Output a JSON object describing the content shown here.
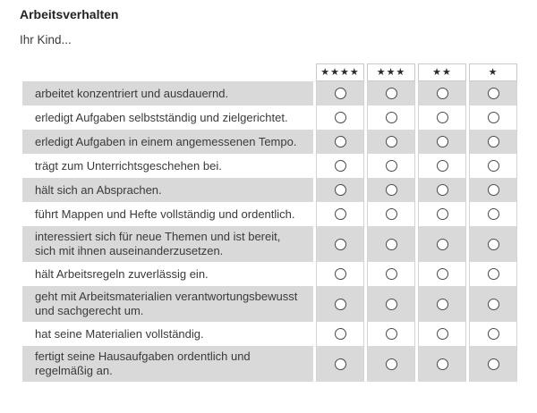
{
  "page": {
    "title": "Arbeitsverhalten",
    "subtitle": "Ihr Kind..."
  },
  "table": {
    "header": {
      "ratings": [
        "★★★★",
        "★★★",
        "★★",
        "★"
      ],
      "rating_star_counts": [
        4,
        3,
        2,
        1
      ]
    },
    "rows": [
      {
        "label": "arbeitet konzentriert und ausdauernd."
      },
      {
        "label": "erledigt Aufgaben selbstständig und zielgerichtet."
      },
      {
        "label": "erledigt Aufgaben in einem angemessenen Tempo."
      },
      {
        "label": "trägt zum Unterrichtsgeschehen bei."
      },
      {
        "label": "hält sich an Absprachen."
      },
      {
        "label": "führt Mappen und Hefte vollständig und ordentlich."
      },
      {
        "label": "interessiert sich für neue Themen und ist bereit, sich mit ihnen auseinanderzusetzen."
      },
      {
        "label": "hält Arbeitsregeln zuverlässig ein."
      },
      {
        "label": "geht mit Arbeitsmaterialien verantwortungsbewusst und sachgerecht um."
      },
      {
        "label": "hat seine Materialien vollständig."
      },
      {
        "label": "fertigt seine Hausaufgaben ordentlich und regelmäßig an."
      }
    ],
    "radio_state": "unselected"
  },
  "colors": {
    "row_shaded_background": "#d9d9d9",
    "header_border": "#c9c9c9",
    "text": "#3a3a3a",
    "radio_border": "#4a4a4a",
    "star": "#2b2b2b"
  }
}
